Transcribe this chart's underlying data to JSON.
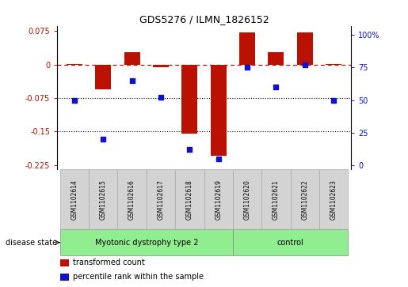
{
  "title": "GDS5276 / ILMN_1826152",
  "samples": [
    "GSM1102614",
    "GSM1102615",
    "GSM1102616",
    "GSM1102617",
    "GSM1102618",
    "GSM1102619",
    "GSM1102620",
    "GSM1102621",
    "GSM1102622",
    "GSM1102623"
  ],
  "bar_values": [
    0.002,
    -0.055,
    0.028,
    -0.005,
    -0.155,
    -0.205,
    0.073,
    0.028,
    0.073,
    0.001
  ],
  "scatter_values_pct": [
    50,
    20,
    65,
    52,
    12,
    5,
    75,
    60,
    77,
    50
  ],
  "bar_color": "#bb1100",
  "scatter_color": "#1111cc",
  "ylim": [
    -0.235,
    0.087
  ],
  "y2lim": [
    -3.1,
    107
  ],
  "yticks": [
    0.075,
    0.0,
    -0.075,
    -0.15,
    -0.225
  ],
  "ytick_labels": [
    "0.075",
    "0",
    "-0.075",
    "-0.15",
    "-0.225"
  ],
  "y2ticks": [
    100,
    75,
    50,
    25,
    0
  ],
  "y2tick_labels": [
    "100%",
    "75",
    "50",
    "25",
    "0"
  ],
  "hline_y": 0.0,
  "dotted_lines": [
    -0.075,
    -0.15
  ],
  "disease_groups": [
    {
      "label": "Myotonic dystrophy type 2",
      "start": 0,
      "end": 6,
      "color": "#90ee90"
    },
    {
      "label": "control",
      "start": 6,
      "end": 10,
      "color": "#90ee90"
    }
  ],
  "disease_state_label": "disease state",
  "legend_items": [
    {
      "label": "transformed count",
      "color": "#bb1100"
    },
    {
      "label": "percentile rank within the sample",
      "color": "#1111cc"
    }
  ],
  "bar_width": 0.55,
  "background_color": "#ffffff",
  "label_box_color": "#d3d3d3"
}
